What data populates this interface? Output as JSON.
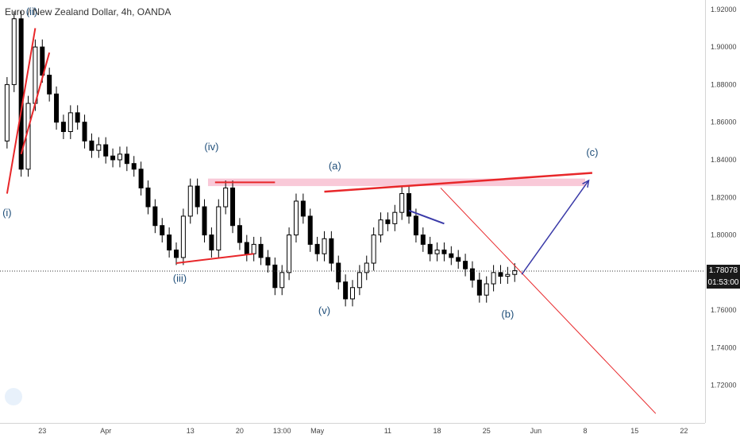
{
  "title": "Euro / New Zealand Dollar, 4h, OANDA",
  "last_price": "1.78078",
  "countdown": "01:53:00",
  "colors": {
    "candle": "#000000",
    "trend": "#e8272a",
    "zone": "#f9c9d8",
    "label": "#1f4e79",
    "projection": "#3a3aa8"
  },
  "chart_data": {
    "type": "line",
    "title": "Euro / New Zealand Dollar, 4h, OANDA",
    "xlabel": "",
    "ylabel": "",
    "ylim": [
      1.7,
      1.925
    ],
    "y_ticks": [
      "1.92000",
      "1.90000",
      "1.88000",
      "1.86000",
      "1.84000",
      "1.82000",
      "1.80000",
      "1.78000",
      "1.76000",
      "1.74000",
      "1.72000"
    ],
    "y_tick_values": [
      1.92,
      1.9,
      1.88,
      1.86,
      1.84,
      1.82,
      1.8,
      1.78,
      1.76,
      1.74,
      1.72
    ],
    "x_ticks": [
      "23",
      "Apr",
      "13",
      "20",
      "13:00",
      "May",
      "11",
      "18",
      "25",
      "Jun",
      "8",
      "15",
      "22"
    ],
    "x_tick_days": [
      0,
      9,
      21,
      28,
      34,
      39,
      49,
      56,
      63,
      70,
      77,
      84,
      91
    ],
    "x_range_days": [
      -6,
      94
    ],
    "series": [
      {
        "x": [
          -6,
          -5,
          -4,
          -3,
          -2,
          -1,
          0,
          1,
          2,
          3,
          4,
          5,
          6,
          7,
          8,
          9,
          10,
          11,
          12,
          13,
          14,
          15,
          16,
          17,
          18,
          19,
          20,
          21,
          22,
          23,
          24,
          25,
          26,
          27,
          28,
          29,
          30,
          31,
          32,
          33,
          34,
          35,
          36,
          37,
          38,
          39,
          40,
          41,
          42,
          43,
          44,
          45,
          46,
          47,
          48,
          49,
          50,
          51,
          52,
          53,
          54,
          55,
          56,
          57,
          58,
          59,
          60,
          61,
          62,
          63,
          64,
          65,
          66,
          67
        ],
        "y": [
          1.85,
          1.88,
          1.915,
          1.835,
          1.87,
          1.9,
          1.885,
          1.875,
          1.86,
          1.855,
          1.865,
          1.86,
          1.85,
          1.845,
          1.848,
          1.842,
          1.84,
          1.843,
          1.838,
          1.835,
          1.825,
          1.815,
          1.805,
          1.8,
          1.792,
          1.788,
          1.81,
          1.826,
          1.815,
          1.8,
          1.792,
          1.815,
          1.825,
          1.805,
          1.796,
          1.79,
          1.795,
          1.788,
          1.784,
          1.772,
          1.78,
          1.8,
          1.818,
          1.81,
          1.795,
          1.79,
          1.798,
          1.785,
          1.775,
          1.766,
          1.772,
          1.78,
          1.785,
          1.8,
          1.808,
          1.806,
          1.812,
          1.822,
          1.81,
          1.8,
          1.795,
          1.79,
          1.792,
          1.79,
          1.788,
          1.786,
          1.782,
          1.776,
          1.768,
          1.774,
          1.78,
          1.778,
          1.779,
          1.781
        ]
      }
    ],
    "annotations": [
      {
        "text": "(i)",
        "x": -5,
        "y": 1.81
      },
      {
        "text": "(ii)",
        "x": -1.5,
        "y": 1.917
      },
      {
        "text": "(iii)",
        "x": 19.5,
        "y": 1.775
      },
      {
        "text": "(iv)",
        "x": 24,
        "y": 1.845
      },
      {
        "text": "(v)",
        "x": 40,
        "y": 1.758
      },
      {
        "text": "(a)",
        "x": 41.5,
        "y": 1.835
      },
      {
        "text": "(b)",
        "x": 66,
        "y": 1.756
      },
      {
        "text": "(c)",
        "x": 78,
        "y": 1.842
      }
    ]
  }
}
